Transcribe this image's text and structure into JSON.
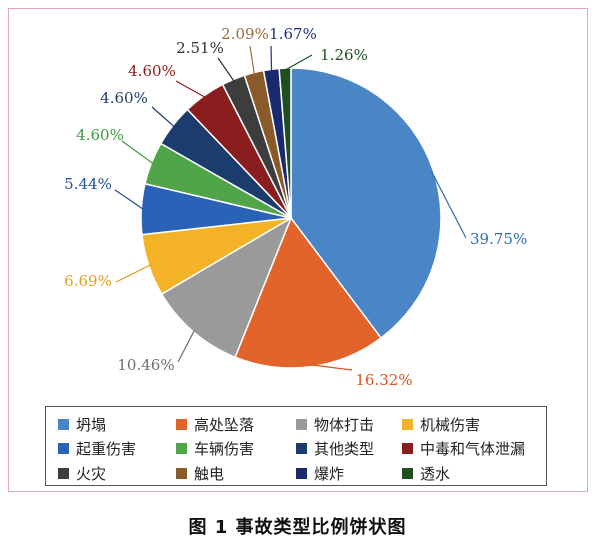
{
  "chart_data": {
    "type": "pie",
    "caption": "图 1    事故类型比例饼状图",
    "start_angle_deg": 0,
    "direction": "clockwise",
    "slices": [
      {
        "name": "坍塌",
        "value": 39.75,
        "label": "39.75%",
        "color": "#4a86c5",
        "label_color": "#2e6db0"
      },
      {
        "name": "高处坠落",
        "value": 16.32,
        "label": "16.32%",
        "color": "#e3642a",
        "label_color": "#d9541e"
      },
      {
        "name": "物体打击",
        "value": 10.46,
        "label": "10.46%",
        "color": "#9a9a9a",
        "label_color": "#6e6e6e"
      },
      {
        "name": "机械伤害",
        "value": 6.69,
        "label": "6.69%",
        "color": "#f4b227",
        "label_color": "#e0a021"
      },
      {
        "name": "起重伤害",
        "value": 5.44,
        "label": "5.44%",
        "color": "#2a62b8",
        "label_color": "#1f4f99"
      },
      {
        "name": "车辆伤害",
        "value": 4.6,
        "label": "4.60%",
        "color": "#4fa548",
        "label_color": "#3d9a3a"
      },
      {
        "name": "其他类型",
        "value": 4.6,
        "label": "4.60%",
        "color": "#1d3c6e",
        "label_color": "#1d3c6e"
      },
      {
        "name": "中毒和气体泄漏",
        "value": 4.6,
        "label": "4.60%",
        "color": "#8a1d1d",
        "label_color": "#8a1d1d"
      },
      {
        "name": "火灾",
        "value": 2.51,
        "label": "2.51%",
        "color": "#3d3d3d",
        "label_color": "#333333"
      },
      {
        "name": "触电",
        "value": 2.09,
        "label": "2.09%",
        "color": "#8a5a2a",
        "label_color": "#9a6a38"
      },
      {
        "name": "爆炸",
        "value": 1.67,
        "label": "1.67%",
        "color": "#1a2a6e",
        "label_color": "#1f3080"
      },
      {
        "name": "透水",
        "value": 1.26,
        "label": "1.26%",
        "color": "#1f4f1f",
        "label_color": "#1f4f1f"
      }
    ]
  }
}
